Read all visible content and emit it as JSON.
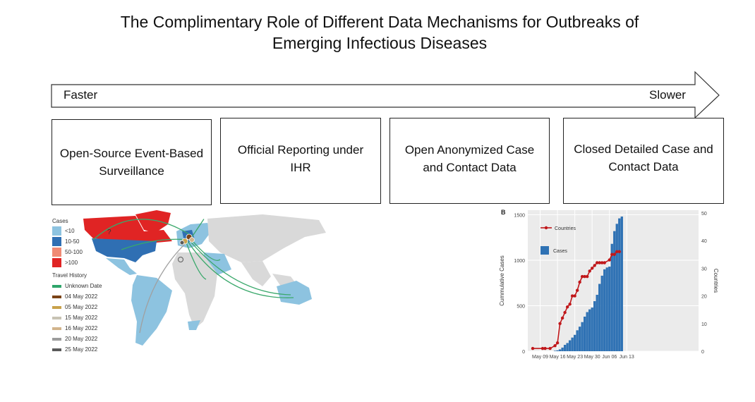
{
  "title": {
    "line1": "The Complimentary Role of Different Data Mechanisms for Outbreaks of",
    "line2": "Emerging Infectious Diseases"
  },
  "arrow": {
    "left_label": "Faster",
    "right_label": "Slower"
  },
  "boxes": [
    {
      "label": "Open-Source Event-Based Surveillance"
    },
    {
      "label": "Official Reporting under IHR"
    },
    {
      "label": "Open Anonymized Case and Contact Data"
    },
    {
      "label": "Closed Detailed Case and Contact Data"
    }
  ],
  "map": {
    "cases_title": "Cases",
    "case_bins": [
      {
        "label": "<10",
        "color": "#8dc3e0"
      },
      {
        "label": "10-50",
        "color": "#2f6fb3"
      },
      {
        "label": "50-100",
        "color": "#f08a74"
      },
      {
        "label": ">100",
        "color": "#e02424"
      }
    ],
    "travel_title": "Travel History",
    "travel_dates": [
      {
        "label": "Unknown Date",
        "color": "#2ea56a"
      },
      {
        "label": "04 May 2022",
        "color": "#7a4316"
      },
      {
        "label": "05 May 2022",
        "color": "#c9a24b"
      },
      {
        "label": "15 May 2022",
        "color": "#c8c3b4"
      },
      {
        "label": "16 May 2022",
        "color": "#d2b48c"
      },
      {
        "label": "20 May 2022",
        "color": "#9c9c9c"
      },
      {
        "label": "25 May 2022",
        "color": "#5a5a5a"
      }
    ],
    "colors": {
      "land": "#d9d9d9",
      "arc": "#3aa86b",
      "arc_grey": "#a0a0a0"
    }
  },
  "chart_data": {
    "type": "bar",
    "panel_label": "B",
    "xlabel": "",
    "ylabel": "Cummulative Cases",
    "y2label": "Countries",
    "ylim": [
      0,
      1550
    ],
    "y2lim": [
      0,
      51
    ],
    "yticks": [
      0,
      500,
      1000,
      1500
    ],
    "y2ticks": [
      0,
      10,
      20,
      30,
      40,
      50
    ],
    "xlim_day": [
      4,
      73
    ],
    "xticks": [
      {
        "label": "May 09",
        "day": 9
      },
      {
        "label": "May 16",
        "day": 16
      },
      {
        "label": "May 23",
        "day": 23
      },
      {
        "label": "May 30",
        "day": 30
      },
      {
        "label": "Jun 06",
        "day": 37
      },
      {
        "label": "Jun 13",
        "day": 44
      }
    ],
    "legend": [
      {
        "name": "Countries",
        "kind": "line",
        "color": "#c0171a"
      },
      {
        "name": "Cases",
        "kind": "bar",
        "color": "#2f72b4"
      }
    ],
    "series": [
      {
        "name": "Cases",
        "kind": "bar",
        "color": "#2f72b4",
        "x": [
          15,
          16,
          17,
          18,
          19,
          20,
          21,
          22,
          23,
          24,
          25,
          26,
          27,
          28,
          29,
          30,
          31,
          32,
          33,
          34,
          35,
          36,
          37,
          38,
          39,
          40,
          41,
          42
        ],
        "values": [
          5,
          10,
          20,
          40,
          70,
          90,
          120,
          150,
          180,
          230,
          270,
          320,
          380,
          430,
          460,
          480,
          550,
          620,
          740,
          830,
          900,
          920,
          930,
          1180,
          1320,
          1400,
          1460,
          1480
        ]
      },
      {
        "name": "Countries",
        "kind": "line",
        "color": "#c0171a",
        "x": [
          6,
          10,
          11,
          13,
          15,
          16,
          17,
          18,
          19,
          20,
          21,
          22,
          23,
          24,
          25,
          26,
          27,
          28,
          29,
          30,
          31,
          32,
          33,
          34,
          35,
          37,
          38,
          39,
          40,
          41
        ],
        "values": [
          1,
          1,
          1,
          1,
          2,
          3,
          10,
          12,
          14,
          16,
          17,
          20,
          20,
          22,
          25,
          27,
          27,
          27,
          29,
          30,
          31,
          32,
          32,
          32,
          32,
          33,
          35,
          35,
          36,
          36
        ]
      }
    ]
  }
}
